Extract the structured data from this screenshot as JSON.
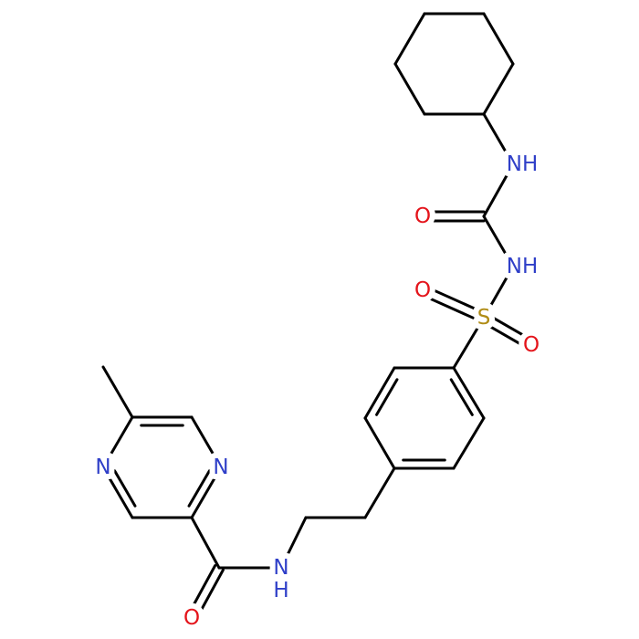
{
  "atoms": [
    "NH",
    "O",
    "NH",
    "S",
    "O",
    "O",
    "N",
    "H",
    "O",
    "N",
    "N"
  ]
}
